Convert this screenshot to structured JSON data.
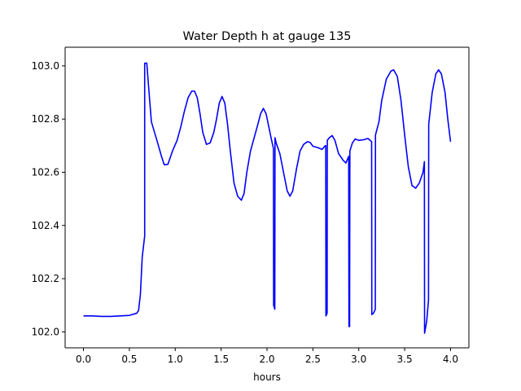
{
  "chart_data": {
    "type": "line",
    "title": "Water Depth h at gauge 135",
    "xlabel": "hours",
    "ylabel": "",
    "xlim": [
      -0.2,
      4.2
    ],
    "ylim": [
      101.94,
      103.07
    ],
    "xticks": [
      0.0,
      0.5,
      1.0,
      1.5,
      2.0,
      2.5,
      3.0,
      3.5,
      4.0
    ],
    "xtick_labels": [
      "0.0",
      "0.5",
      "1.0",
      "1.5",
      "2.0",
      "2.5",
      "3.0",
      "3.5",
      "4.0"
    ],
    "yticks": [
      102.0,
      102.2,
      102.4,
      102.6,
      102.8,
      103.0
    ],
    "ytick_labels": [
      "102.0",
      "102.2",
      "102.4",
      "102.6",
      "102.8",
      "103.0"
    ],
    "grid": false,
    "legend": null,
    "series": [
      {
        "color": "#0000ff",
        "points": [
          [
            0.0,
            102.06
          ],
          [
            0.1,
            102.06
          ],
          [
            0.2,
            102.058
          ],
          [
            0.3,
            102.058
          ],
          [
            0.4,
            102.06
          ],
          [
            0.5,
            102.062
          ],
          [
            0.58,
            102.07
          ],
          [
            0.6,
            102.08
          ],
          [
            0.62,
            102.14
          ],
          [
            0.64,
            102.28
          ],
          [
            0.66,
            102.34
          ],
          [
            0.667,
            102.36
          ],
          [
            0.667,
            103.01
          ],
          [
            0.69,
            103.01
          ],
          [
            0.71,
            102.92
          ],
          [
            0.74,
            102.79
          ],
          [
            0.8,
            102.72
          ],
          [
            0.85,
            102.66
          ],
          [
            0.88,
            102.628
          ],
          [
            0.92,
            102.63
          ],
          [
            0.97,
            102.68
          ],
          [
            1.02,
            102.72
          ],
          [
            1.06,
            102.77
          ],
          [
            1.1,
            102.83
          ],
          [
            1.14,
            102.88
          ],
          [
            1.18,
            102.905
          ],
          [
            1.21,
            102.905
          ],
          [
            1.24,
            102.88
          ],
          [
            1.27,
            102.82
          ],
          [
            1.3,
            102.75
          ],
          [
            1.34,
            102.705
          ],
          [
            1.38,
            102.71
          ],
          [
            1.42,
            102.75
          ],
          [
            1.45,
            102.8
          ],
          [
            1.48,
            102.86
          ],
          [
            1.51,
            102.885
          ],
          [
            1.54,
            102.86
          ],
          [
            1.57,
            102.78
          ],
          [
            1.6,
            102.68
          ],
          [
            1.64,
            102.56
          ],
          [
            1.68,
            102.51
          ],
          [
            1.72,
            102.495
          ],
          [
            1.75,
            102.52
          ],
          [
            1.78,
            102.6
          ],
          [
            1.82,
            102.68
          ],
          [
            1.86,
            102.73
          ],
          [
            1.9,
            102.78
          ],
          [
            1.93,
            102.82
          ],
          [
            1.96,
            102.84
          ],
          [
            1.99,
            102.82
          ],
          [
            2.02,
            102.77
          ],
          [
            2.05,
            102.72
          ],
          [
            2.07,
            102.69
          ],
          [
            2.072,
            102.1
          ],
          [
            2.085,
            102.085
          ],
          [
            2.087,
            102.73
          ],
          [
            2.1,
            102.71
          ],
          [
            2.14,
            102.67
          ],
          [
            2.18,
            102.6
          ],
          [
            2.22,
            102.53
          ],
          [
            2.25,
            102.51
          ],
          [
            2.28,
            102.53
          ],
          [
            2.32,
            102.61
          ],
          [
            2.36,
            102.68
          ],
          [
            2.4,
            102.705
          ],
          [
            2.44,
            102.715
          ],
          [
            2.47,
            102.712
          ],
          [
            2.5,
            102.698
          ],
          [
            2.55,
            102.693
          ],
          [
            2.6,
            102.686
          ],
          [
            2.635,
            102.7
          ],
          [
            2.64,
            102.7
          ],
          [
            2.642,
            102.06
          ],
          [
            2.655,
            102.07
          ],
          [
            2.657,
            102.72
          ],
          [
            2.68,
            102.73
          ],
          [
            2.71,
            102.738
          ],
          [
            2.74,
            102.72
          ],
          [
            2.78,
            102.67
          ],
          [
            2.83,
            102.645
          ],
          [
            2.86,
            102.635
          ],
          [
            2.89,
            102.66
          ],
          [
            2.893,
            102.02
          ],
          [
            2.9,
            102.02
          ],
          [
            2.903,
            102.68
          ],
          [
            2.93,
            102.71
          ],
          [
            2.96,
            102.725
          ],
          [
            3.0,
            102.72
          ],
          [
            3.05,
            102.722
          ],
          [
            3.1,
            102.727
          ],
          [
            3.14,
            102.715
          ],
          [
            3.142,
            102.065
          ],
          [
            3.16,
            102.07
          ],
          [
            3.18,
            102.085
          ],
          [
            3.182,
            102.74
          ],
          [
            3.22,
            102.79
          ],
          [
            3.25,
            102.87
          ],
          [
            3.3,
            102.95
          ],
          [
            3.35,
            102.98
          ],
          [
            3.38,
            102.985
          ],
          [
            3.42,
            102.96
          ],
          [
            3.46,
            102.87
          ],
          [
            3.5,
            102.74
          ],
          [
            3.54,
            102.62
          ],
          [
            3.58,
            102.55
          ],
          [
            3.62,
            102.54
          ],
          [
            3.66,
            102.56
          ],
          [
            3.7,
            102.6
          ],
          [
            3.715,
            102.64
          ],
          [
            3.717,
            101.995
          ],
          [
            3.74,
            102.04
          ],
          [
            3.76,
            102.12
          ],
          [
            3.762,
            102.78
          ],
          [
            3.8,
            102.9
          ],
          [
            3.84,
            102.97
          ],
          [
            3.87,
            102.985
          ],
          [
            3.9,
            102.97
          ],
          [
            3.94,
            102.9
          ],
          [
            3.97,
            102.8
          ],
          [
            4.0,
            102.715
          ]
        ]
      }
    ]
  }
}
